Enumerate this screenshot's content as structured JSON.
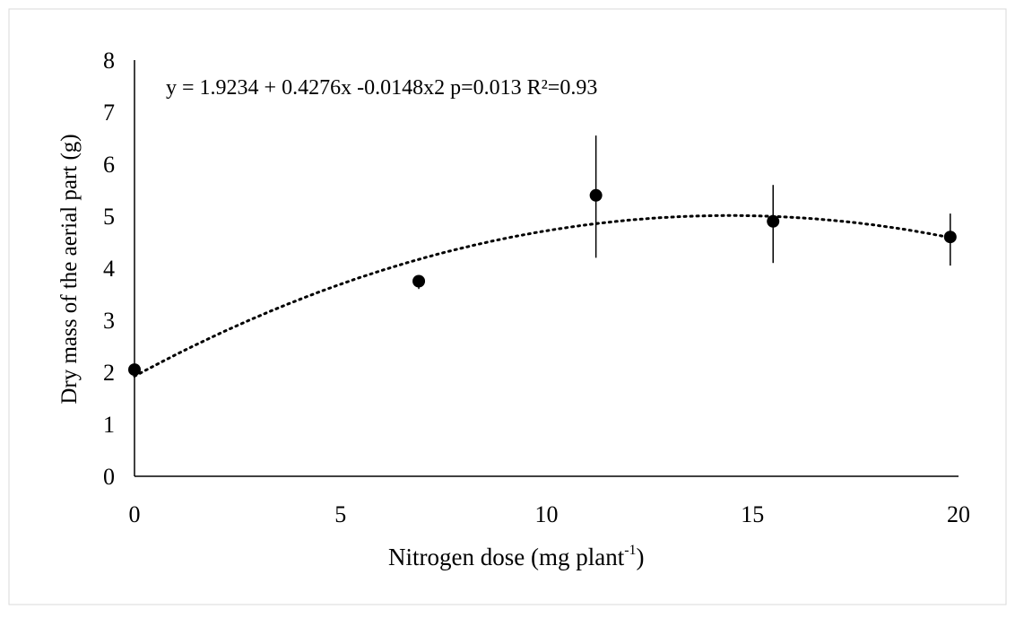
{
  "chart_data": {
    "type": "scatter",
    "title": "",
    "xlabel": "Nitrogen dose (mg plant",
    "xlabel_superscript": "-1",
    "xlabel_suffix": ")",
    "ylabel": "Dry mass of the aerial part (g)",
    "xlim": [
      0,
      20
    ],
    "ylim": [
      0,
      8
    ],
    "xticks": [
      "0",
      "5",
      "10",
      "15",
      "20"
    ],
    "yticks": [
      "0",
      "1",
      "2",
      "3",
      "4",
      "5",
      "6",
      "7",
      "8"
    ],
    "grid": false,
    "legend": "none",
    "equation": "y = 1.9234 + 0.4276x -0.0148x2 p=0.013 R²=0.93",
    "trendline": {
      "type": "polynomial",
      "coefficients": [
        1.9234,
        0.4276,
        -0.0148
      ]
    },
    "points": [
      {
        "x": 0,
        "y": 2.05,
        "err_low": 2.05,
        "err_high": 2.05
      },
      {
        "x": 6.9,
        "y": 3.75,
        "err_low": 3.6,
        "err_high": 3.8
      },
      {
        "x": 11.2,
        "y": 5.4,
        "err_low": 4.2,
        "err_high": 6.55
      },
      {
        "x": 15.5,
        "y": 4.9,
        "err_low": 4.1,
        "err_high": 5.6
      },
      {
        "x": 19.8,
        "y": 4.6,
        "err_low": 4.05,
        "err_high": 5.05
      }
    ]
  }
}
